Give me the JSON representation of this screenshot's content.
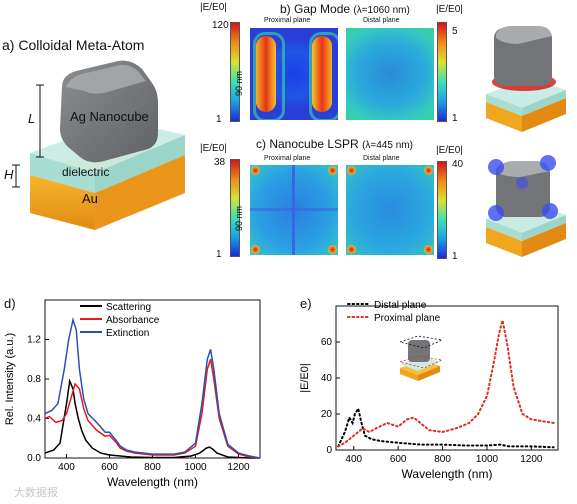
{
  "panel_a": {
    "title": "a) Colloidal Meta-Atom",
    "cube_label": "Ag Nanocube",
    "dielectric_label": "dielectric",
    "au_label": "Au",
    "L_label": "L",
    "H_label": "H"
  },
  "panel_b": {
    "title": "b) Gap Mode",
    "wavelength": "(λ=1060 nm)",
    "proximal_label": "Proximal plane",
    "distal_label": "Distal plane",
    "size_label": "90 nm",
    "left_scale": {
      "label": "|E/E0|",
      "max": "120",
      "min": "1"
    },
    "right_scale": {
      "label": "|E/E0|",
      "max": "5",
      "min": "1"
    }
  },
  "panel_c": {
    "title": "c) Nanocube LSPR",
    "wavelength": "(λ=445 nm)",
    "proximal_label": "Proximal plane",
    "distal_label": "Distal plane",
    "size_label": "90 nm",
    "left_scale": {
      "label": "|E/E0|",
      "max": "38",
      "min": "1"
    },
    "right_scale": {
      "label": "|E/E0|",
      "max": "40",
      "min": "1"
    }
  },
  "colors": {
    "scattering": "#000000",
    "absorbance": "#e11b1b",
    "extinction": "#2b4fb8",
    "distal": "#000000",
    "proximal": "#e02b1b"
  },
  "watermark": "大数据报",
  "chart_data": [
    {
      "panel": "d)",
      "type": "line",
      "xlabel": "Wavelength (nm)",
      "ylabel": "Rel. Intensity (a.u.)",
      "xlim": [
        300,
        1300
      ],
      "ylim": [
        0,
        1.6
      ],
      "xticks": [
        "400",
        "600",
        "800",
        "1000",
        "1200"
      ],
      "yticks": [
        "0.0",
        "0.4",
        "0.8",
        "1.2"
      ],
      "legend_position": "top-center",
      "series": [
        {
          "name": "Scattering",
          "color": "#000000",
          "x": [
            300,
            340,
            370,
            400,
            415,
            430,
            440,
            455,
            470,
            490,
            520,
            560,
            600,
            650,
            700,
            800,
            900,
            980,
            1020,
            1050,
            1065,
            1080,
            1100,
            1150,
            1200,
            1250,
            1300
          ],
          "y": [
            0.05,
            0.08,
            0.15,
            0.55,
            0.78,
            0.7,
            0.55,
            0.4,
            0.28,
            0.18,
            0.1,
            0.05,
            0.03,
            0.02,
            0.01,
            0.005,
            0.005,
            0.02,
            0.05,
            0.1,
            0.11,
            0.09,
            0.05,
            0.01,
            0.005,
            0.0,
            0.0
          ]
        },
        {
          "name": "Absorbance",
          "color": "#e11b1b",
          "x": [
            300,
            320,
            350,
            380,
            400,
            420,
            440,
            460,
            480,
            500,
            540,
            580,
            600,
            630,
            650,
            680,
            720,
            800,
            900,
            950,
            1000,
            1030,
            1055,
            1070,
            1085,
            1110,
            1150,
            1200,
            1250,
            1300
          ],
          "y": [
            0.4,
            0.42,
            0.36,
            0.38,
            0.45,
            0.6,
            0.75,
            0.7,
            0.5,
            0.38,
            0.28,
            0.22,
            0.23,
            0.16,
            0.1,
            0.07,
            0.05,
            0.03,
            0.03,
            0.05,
            0.12,
            0.45,
            0.9,
            1.0,
            0.8,
            0.4,
            0.12,
            0.04,
            0.01,
            0.0
          ]
        },
        {
          "name": "Extinction",
          "color": "#2b4fb8",
          "x": [
            300,
            330,
            360,
            390,
            410,
            430,
            445,
            460,
            480,
            500,
            540,
            580,
            600,
            630,
            650,
            680,
            720,
            800,
            900,
            950,
            1000,
            1030,
            1055,
            1070,
            1085,
            1110,
            1150,
            1200,
            1250,
            1300
          ],
          "y": [
            0.45,
            0.48,
            0.55,
            0.9,
            1.2,
            1.4,
            1.3,
            0.9,
            0.6,
            0.45,
            0.36,
            0.26,
            0.26,
            0.18,
            0.12,
            0.08,
            0.06,
            0.04,
            0.04,
            0.06,
            0.15,
            0.55,
            1.0,
            1.1,
            0.9,
            0.45,
            0.14,
            0.05,
            0.02,
            0.0
          ]
        }
      ]
    },
    {
      "panel": "e)",
      "type": "line",
      "xlabel": "Wavelength (nm)",
      "ylabel": "|E/E0|",
      "xlim": [
        320,
        1320
      ],
      "ylim": [
        0,
        80
      ],
      "xticks": [
        "400",
        "600",
        "800",
        "1000",
        "1200"
      ],
      "yticks": [
        "0",
        "20",
        "40",
        "60"
      ],
      "legend_position": "top-left",
      "series": [
        {
          "name": "Distal plane",
          "color": "#000000",
          "style": "dotted",
          "x": [
            330,
            360,
            380,
            395,
            405,
            420,
            435,
            450,
            480,
            520,
            600,
            700,
            800,
            900,
            1000,
            1060,
            1100,
            1200,
            1300
          ],
          "y": [
            2,
            10,
            18,
            15,
            20,
            23,
            15,
            8,
            6,
            5,
            4,
            3,
            3,
            2.5,
            2.5,
            3,
            2,
            2,
            1.5
          ]
        },
        {
          "name": "Proximal plane",
          "color": "#e02b1b",
          "style": "dotted",
          "x": [
            330,
            360,
            400,
            440,
            470,
            500,
            550,
            600,
            640,
            670,
            700,
            740,
            800,
            860,
            920,
            960,
            1000,
            1030,
            1055,
            1070,
            1090,
            1120,
            1160,
            1200,
            1250,
            1300
          ],
          "y": [
            2,
            4,
            8,
            12,
            10,
            12,
            15,
            13,
            17,
            18,
            15,
            11,
            10,
            12,
            15,
            20,
            30,
            48,
            65,
            72,
            60,
            35,
            20,
            17,
            16,
            15
          ]
        }
      ]
    }
  ]
}
